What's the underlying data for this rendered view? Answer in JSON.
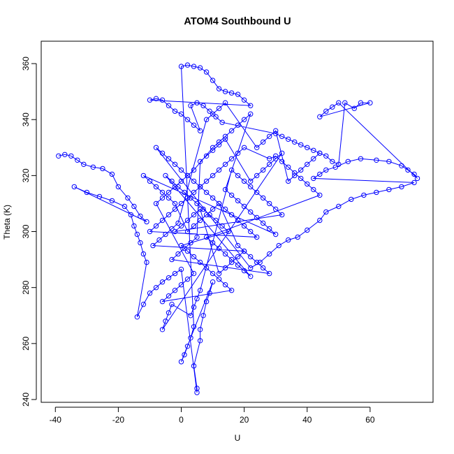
{
  "chart_data": {
    "type": "scatter",
    "title": "ATOM4 Southbound U",
    "xlabel": "U",
    "ylabel": "Theta (K)",
    "xlim": [
      -44.5,
      80
    ],
    "ylim": [
      239,
      368
    ],
    "xticks": [
      -40,
      -20,
      0,
      20,
      40,
      60
    ],
    "yticks": [
      240,
      260,
      280,
      300,
      320,
      340,
      360
    ],
    "grid": false,
    "legend": "none",
    "marker": "open-circle",
    "connected": true,
    "color": "#0000ff",
    "series": [
      {
        "points": [
          [
            -39,
            327
          ],
          [
            -37,
            327.5
          ],
          [
            -35,
            327
          ],
          [
            -33,
            325.5
          ],
          [
            -31,
            324
          ],
          [
            -28,
            323
          ],
          [
            -25,
            322.5
          ],
          [
            -22,
            320.5
          ],
          [
            -20,
            316
          ],
          [
            -17,
            312
          ],
          [
            -15,
            309
          ],
          [
            -13,
            305.5
          ],
          [
            -11,
            303.5
          ],
          [
            -34,
            316
          ],
          [
            -30,
            314
          ],
          [
            -26,
            312.5
          ],
          [
            -22,
            311
          ],
          [
            -18,
            309
          ],
          [
            -16,
            306
          ],
          [
            -15,
            302
          ],
          [
            -14,
            299
          ],
          [
            -13,
            296
          ],
          [
            -12,
            292
          ],
          [
            -11,
            289
          ],
          [
            -14,
            269.5
          ],
          [
            -12,
            274
          ],
          [
            -10,
            278
          ],
          [
            -8,
            280
          ],
          [
            -6,
            282
          ],
          [
            -4,
            283.5
          ],
          [
            -2,
            285
          ],
          [
            0,
            286.5
          ],
          [
            5,
            242.5
          ],
          [
            5,
            244
          ],
          [
            4,
            252
          ],
          [
            6,
            261
          ],
          [
            6,
            265
          ],
          [
            7,
            270
          ],
          [
            8,
            275
          ],
          [
            9,
            278
          ],
          [
            10,
            282
          ],
          [
            0,
            253.5
          ],
          [
            1,
            256
          ],
          [
            2,
            259
          ],
          [
            3,
            262
          ],
          [
            4,
            266
          ],
          [
            0,
            359
          ],
          [
            2,
            359.5
          ],
          [
            4,
            359
          ],
          [
            6,
            358.5
          ],
          [
            8,
            357
          ],
          [
            10,
            354
          ],
          [
            12,
            351
          ],
          [
            14,
            350
          ],
          [
            16,
            349.5
          ],
          [
            18,
            349
          ],
          [
            20,
            347
          ],
          [
            22,
            345
          ],
          [
            -10,
            347
          ],
          [
            -8,
            347.5
          ],
          [
            -6,
            347
          ],
          [
            -4,
            345
          ],
          [
            -2,
            343
          ],
          [
            0,
            342
          ],
          [
            2,
            340
          ],
          [
            4,
            338
          ],
          [
            6,
            336
          ],
          [
            3,
            345
          ],
          [
            5,
            346
          ],
          [
            7,
            345
          ],
          [
            9,
            343
          ],
          [
            11,
            341
          ],
          [
            13,
            339
          ],
          [
            30,
            335
          ],
          [
            32,
            334
          ],
          [
            34,
            333
          ],
          [
            36,
            332
          ],
          [
            38,
            331
          ],
          [
            40,
            330
          ],
          [
            42,
            329
          ],
          [
            44,
            328
          ],
          [
            46,
            327
          ],
          [
            48,
            325
          ],
          [
            50,
            324
          ],
          [
            52,
            346
          ],
          [
            55,
            344
          ],
          [
            57,
            346
          ],
          [
            60,
            346
          ],
          [
            44,
            341
          ],
          [
            46,
            343
          ],
          [
            48,
            344.5
          ],
          [
            50,
            346
          ],
          [
            75,
            319
          ],
          [
            74,
            320.5
          ],
          [
            72,
            322
          ],
          [
            70,
            323.5
          ],
          [
            66,
            325
          ],
          [
            62,
            325.5
          ],
          [
            57,
            326
          ],
          [
            53,
            325
          ],
          [
            49,
            323
          ],
          [
            46,
            322
          ],
          [
            44,
            320.5
          ],
          [
            42,
            319
          ],
          [
            74,
            317.5
          ],
          [
            70,
            316
          ],
          [
            66,
            315
          ],
          [
            62,
            314
          ],
          [
            58,
            313
          ],
          [
            54,
            311.5
          ],
          [
            50,
            309
          ],
          [
            46,
            307
          ],
          [
            44,
            304
          ],
          [
            40,
            300.5
          ],
          [
            37,
            298
          ],
          [
            34,
            297
          ],
          [
            31,
            295
          ],
          [
            28,
            292
          ],
          [
            25,
            289
          ],
          [
            22,
            287
          ],
          [
            -8,
            330
          ],
          [
            -6,
            328
          ],
          [
            -4,
            326
          ],
          [
            -2,
            324
          ],
          [
            0,
            322
          ],
          [
            2,
            320
          ],
          [
            4,
            318
          ],
          [
            6,
            316
          ],
          [
            8,
            314
          ],
          [
            10,
            312
          ],
          [
            12,
            310
          ],
          [
            14,
            308
          ],
          [
            16,
            306
          ],
          [
            18,
            304
          ],
          [
            20,
            302
          ],
          [
            22,
            300
          ],
          [
            24,
            298
          ],
          [
            -10,
            300
          ],
          [
            -8,
            302
          ],
          [
            -6,
            304
          ],
          [
            -4,
            306
          ],
          [
            -2,
            308
          ],
          [
            0,
            310
          ],
          [
            2,
            312
          ],
          [
            4,
            314
          ],
          [
            6,
            316
          ],
          [
            8,
            318
          ],
          [
            10,
            320
          ],
          [
            12,
            322
          ],
          [
            14,
            324
          ],
          [
            16,
            326
          ],
          [
            18,
            328
          ],
          [
            20,
            330
          ],
          [
            28,
            326
          ],
          [
            30,
            327
          ],
          [
            32,
            325
          ],
          [
            34,
            323
          ],
          [
            36,
            321
          ],
          [
            38,
            319
          ],
          [
            40,
            317
          ],
          [
            42,
            315
          ],
          [
            44,
            313
          ],
          [
            8,
            298
          ],
          [
            10,
            296
          ],
          [
            12,
            294
          ],
          [
            14,
            292
          ],
          [
            16,
            290
          ],
          [
            18,
            288
          ],
          [
            20,
            286
          ],
          [
            22,
            284
          ],
          [
            -5,
            320
          ],
          [
            -3,
            318
          ],
          [
            -1,
            316
          ],
          [
            1,
            314
          ],
          [
            3,
            312
          ],
          [
            5,
            310
          ],
          [
            7,
            308
          ],
          [
            9,
            306
          ],
          [
            11,
            304
          ],
          [
            13,
            302
          ],
          [
            15,
            300
          ],
          [
            0,
            295
          ],
          [
            2,
            293
          ],
          [
            4,
            291
          ],
          [
            6,
            289
          ],
          [
            8,
            287
          ],
          [
            10,
            285
          ],
          [
            12,
            283
          ],
          [
            14,
            281
          ],
          [
            16,
            279
          ],
          [
            -6,
            275
          ],
          [
            -4,
            277
          ],
          [
            -2,
            279
          ],
          [
            0,
            281
          ],
          [
            2,
            283
          ],
          [
            4,
            285
          ],
          [
            -8,
            310
          ],
          [
            -6,
            312
          ],
          [
            -4,
            314
          ],
          [
            -2,
            316
          ],
          [
            0,
            318
          ],
          [
            2,
            320
          ],
          [
            4,
            322
          ],
          [
            10,
            330
          ],
          [
            12,
            332
          ],
          [
            14,
            334
          ],
          [
            16,
            336
          ],
          [
            18,
            338
          ],
          [
            20,
            340
          ],
          [
            22,
            342
          ],
          [
            14,
            315
          ],
          [
            16,
            313
          ],
          [
            18,
            311
          ],
          [
            20,
            309
          ],
          [
            22,
            307
          ],
          [
            24,
            305
          ],
          [
            26,
            303
          ],
          [
            28,
            301
          ],
          [
            30,
            299
          ],
          [
            -12,
            320
          ],
          [
            -10,
            318
          ],
          [
            -8,
            316
          ],
          [
            -6,
            314
          ],
          [
            -4,
            312
          ],
          [
            -2,
            310
          ],
          [
            2,
            300
          ],
          [
            4,
            302
          ],
          [
            6,
            304
          ],
          [
            8,
            306
          ],
          [
            10,
            308
          ],
          [
            12,
            310
          ],
          [
            18,
            295
          ],
          [
            20,
            293
          ],
          [
            22,
            291
          ],
          [
            24,
            289
          ],
          [
            26,
            287
          ],
          [
            28,
            285
          ],
          [
            -3,
            290
          ],
          [
            -1,
            292
          ],
          [
            1,
            294
          ],
          [
            3,
            296
          ],
          [
            5,
            298
          ],
          [
            6,
            325
          ],
          [
            8,
            327
          ],
          [
            10,
            329
          ],
          [
            12,
            331
          ],
          [
            14,
            333
          ],
          [
            22,
            318
          ],
          [
            24,
            320
          ],
          [
            26,
            322
          ],
          [
            28,
            324
          ],
          [
            30,
            326
          ],
          [
            32,
            328
          ],
          [
            -6,
            265
          ],
          [
            -5,
            268
          ],
          [
            -4,
            271
          ],
          [
            -3,
            274
          ],
          [
            3,
            270
          ],
          [
            4,
            273
          ],
          [
            5,
            276
          ],
          [
            6,
            279
          ],
          [
            16,
            322
          ],
          [
            18,
            320
          ],
          [
            20,
            318
          ],
          [
            22,
            316
          ],
          [
            24,
            314
          ],
          [
            26,
            312
          ],
          [
            28,
            310
          ],
          [
            30,
            308
          ],
          [
            32,
            306
          ],
          [
            -2,
            300
          ],
          [
            0,
            302
          ],
          [
            2,
            304
          ],
          [
            4,
            306
          ],
          [
            6,
            308
          ],
          [
            12,
            285
          ],
          [
            14,
            287
          ],
          [
            16,
            289
          ],
          [
            18,
            291
          ],
          [
            20,
            293
          ],
          [
            -9,
            295
          ],
          [
            -7,
            297
          ],
          [
            -5,
            299
          ],
          [
            -3,
            301
          ],
          [
            -1,
            303
          ],
          [
            8,
            340
          ],
          [
            10,
            342
          ],
          [
            12,
            344
          ],
          [
            14,
            346
          ],
          [
            24,
            330
          ],
          [
            26,
            332
          ],
          [
            28,
            334
          ],
          [
            30,
            336
          ],
          [
            34,
            318
          ],
          [
            36,
            320
          ],
          [
            38,
            322
          ],
          [
            40,
            324
          ],
          [
            42,
            326
          ],
          [
            44,
            328
          ]
        ]
      }
    ]
  }
}
